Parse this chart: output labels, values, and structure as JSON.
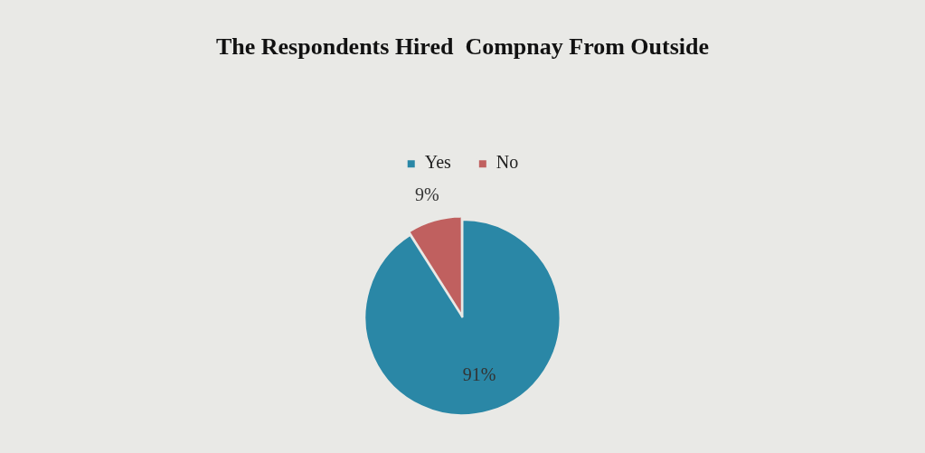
{
  "chart_data": {
    "type": "pie",
    "title": "The Respondents Hired  Compnay From Outside",
    "categories": [
      "Yes",
      "No"
    ],
    "values": [
      91,
      9
    ],
    "colors": [
      "#2a87a6",
      "#c0605f"
    ],
    "value_labels": [
      "91%",
      "9%"
    ],
    "legend": "top"
  }
}
